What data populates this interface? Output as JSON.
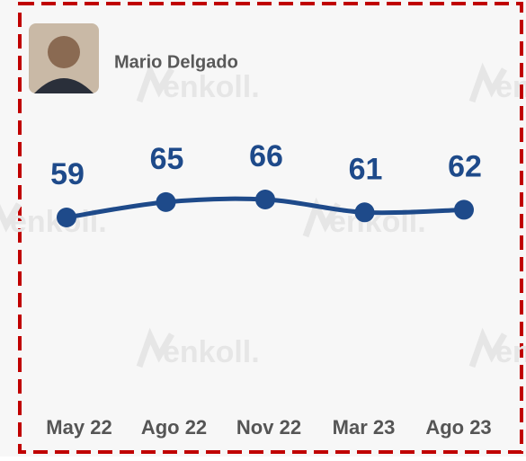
{
  "chart_data": {
    "type": "line",
    "person": "Mario Delgado",
    "watermark": "enkoll.",
    "categories": [
      "May 22",
      "Ago 22",
      "Nov 22",
      "Mar 23",
      "Ago 23"
    ],
    "values": [
      59,
      65,
      66,
      61,
      62
    ],
    "color": "#1e4a8a"
  }
}
